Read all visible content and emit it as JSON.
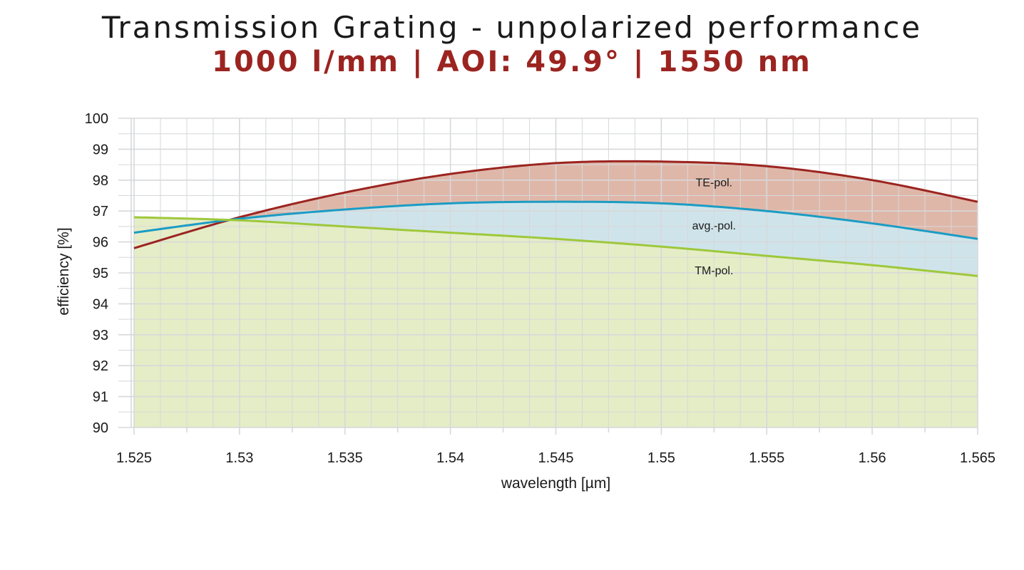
{
  "header": {
    "title": "Transmission Grating - unpolarized performance",
    "subtitle": "1000 l/mm | AOI: 49.9° | 1550 nm",
    "title_color": "#1a1a1a",
    "subtitle_color": "#9b2420"
  },
  "chart_data": {
    "type": "line",
    "xlabel": "wavelength [µm]",
    "ylabel": "efficiency [%]",
    "xlim": [
      1.525,
      1.565
    ],
    "ylim": [
      90,
      100
    ],
    "x_ticks": [
      "1.525",
      "1.53",
      "1.535",
      "1.54",
      "1.545",
      "1.55",
      "1.555",
      "1.56",
      "1.565"
    ],
    "y_ticks": [
      "90",
      "91",
      "92",
      "93",
      "94",
      "95",
      "96",
      "97",
      "98",
      "99",
      "100"
    ],
    "grid": true,
    "x": [
      1.525,
      1.53,
      1.535,
      1.54,
      1.545,
      1.55,
      1.555,
      1.56,
      1.565
    ],
    "series": [
      {
        "name": "TE-pol.",
        "color": "#9b2420",
        "fill": "#dfb7a9",
        "values": [
          95.8,
          96.8,
          97.6,
          98.2,
          98.55,
          98.6,
          98.45,
          98.0,
          97.3
        ]
      },
      {
        "name": "avg.-pol.",
        "color": "#1b9cc4",
        "fill": "#cfe4ea",
        "values": [
          96.3,
          96.75,
          97.05,
          97.25,
          97.3,
          97.25,
          97.0,
          96.6,
          96.1
        ]
      },
      {
        "name": "TM-pol.",
        "color": "#9ec83b",
        "fill": "#e5edc7",
        "values": [
          96.8,
          96.7,
          96.5,
          96.3,
          96.1,
          95.85,
          95.55,
          95.25,
          94.9
        ]
      }
    ],
    "series_label_positions": {
      "TE-pol.": [
        1.5525,
        97.8
      ],
      "avg.-pol.": [
        1.5525,
        96.4
      ],
      "TM-pol.": [
        1.5525,
        94.95
      ]
    }
  }
}
